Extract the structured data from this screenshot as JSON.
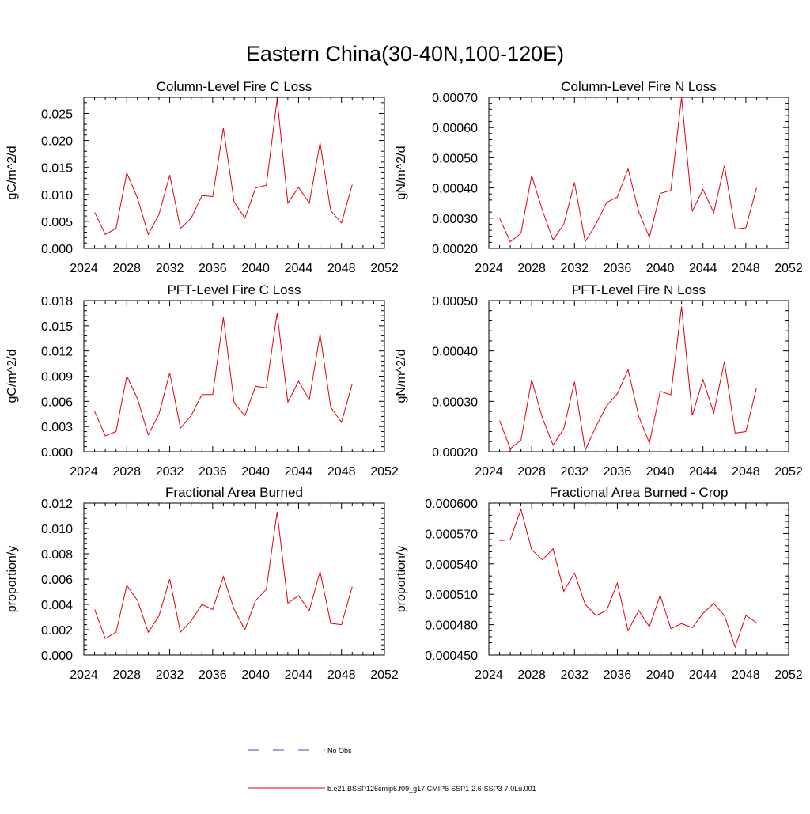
{
  "figure_title": "Eastern China(30-40N,100-120E)",
  "legend": {
    "entries": [
      {
        "label": "No Obs",
        "color": "#4a4aa8",
        "dash": true
      },
      {
        "label": "b.e21.BSSP126cmip6.f09_g17.CMIP6-SSP1-2.6-SSP3-7.0Lu.001",
        "color": "#e0000b",
        "dash": false
      }
    ]
  },
  "chart_data": [
    {
      "type": "line",
      "title": "Column-Level Fire C Loss",
      "ylabel": "gC/m^2/d",
      "xlim": [
        2024,
        2052
      ],
      "ylim": [
        0,
        0.028
      ],
      "xticks": [
        "2024",
        "2028",
        "2032",
        "2036",
        "2040",
        "2044",
        "2048",
        "2052"
      ],
      "yticks": [
        "0.000",
        "0.005",
        "0.010",
        "0.015",
        "0.020",
        "0.025"
      ],
      "ytick_values": [
        0,
        0.005,
        0.01,
        0.015,
        0.02,
        0.025
      ],
      "series": [
        {
          "color": "#e0000b",
          "x": [
            2025,
            2026,
            2027,
            2028,
            2029,
            2030,
            2031,
            2032,
            2033,
            2034,
            2035,
            2036,
            2037,
            2038,
            2039,
            2040,
            2041,
            2042,
            2043,
            2044,
            2045,
            2046,
            2047,
            2048,
            2049
          ],
          "values": [
            0.0067,
            0.0026,
            0.0037,
            0.014,
            0.0093,
            0.0026,
            0.0063,
            0.0136,
            0.0037,
            0.0056,
            0.0098,
            0.0096,
            0.0223,
            0.0086,
            0.0056,
            0.0112,
            0.0117,
            0.0276,
            0.0084,
            0.0113,
            0.0084,
            0.0196,
            0.007,
            0.0047,
            0.0118
          ]
        }
      ]
    },
    {
      "type": "line",
      "title": "Column-Level Fire N Loss",
      "ylabel": "gN/m^2/d",
      "xlim": [
        2024,
        2052
      ],
      "ylim": [
        0.0002,
        0.0007
      ],
      "xticks": [
        "2024",
        "2028",
        "2032",
        "2036",
        "2040",
        "2044",
        "2048",
        "2052"
      ],
      "yticks": [
        "0.00020",
        "0.00030",
        "0.00040",
        "0.00050",
        "0.00060",
        "0.00070"
      ],
      "ytick_values": [
        0.0002,
        0.0003,
        0.0004,
        0.0005,
        0.0006,
        0.0007
      ],
      "series": [
        {
          "color": "#e0000b",
          "x": [
            2025,
            2026,
            2027,
            2028,
            2029,
            2030,
            2031,
            2032,
            2033,
            2034,
            2035,
            2036,
            2037,
            2038,
            2039,
            2040,
            2041,
            2042,
            2043,
            2044,
            2045,
            2046,
            2047,
            2048,
            2049
          ],
          "values": [
            0.0003,
            0.000222,
            0.00025,
            0.000441,
            0.000326,
            0.000228,
            0.00028,
            0.000418,
            0.000222,
            0.00028,
            0.000352,
            0.00037,
            0.000463,
            0.000321,
            0.000237,
            0.000382,
            0.000392,
            0.0007,
            0.000323,
            0.000395,
            0.000318,
            0.000474,
            0.000264,
            0.000268,
            0.0004
          ]
        }
      ]
    },
    {
      "type": "line",
      "title": "PFT-Level Fire C Loss",
      "ylabel": "gC/m^2/d",
      "xlim": [
        2024,
        2052
      ],
      "ylim": [
        0,
        0.018
      ],
      "xticks": [
        "2024",
        "2028",
        "2032",
        "2036",
        "2040",
        "2044",
        "2048",
        "2052"
      ],
      "yticks": [
        "0.000",
        "0.003",
        "0.006",
        "0.009",
        "0.012",
        "0.015",
        "0.018"
      ],
      "ytick_values": [
        0,
        0.003,
        0.006,
        0.009,
        0.012,
        0.015,
        0.018
      ],
      "series": [
        {
          "color": "#e0000b",
          "x": [
            2025,
            2026,
            2027,
            2028,
            2029,
            2030,
            2031,
            2032,
            2033,
            2034,
            2035,
            2036,
            2037,
            2038,
            2039,
            2040,
            2041,
            2042,
            2043,
            2044,
            2045,
            2046,
            2047,
            2048,
            2049
          ],
          "values": [
            0.0048,
            0.0019,
            0.0024,
            0.009,
            0.0063,
            0.002,
            0.0045,
            0.0094,
            0.0028,
            0.0043,
            0.0068,
            0.0068,
            0.016,
            0.0058,
            0.0043,
            0.0078,
            0.0076,
            0.0165,
            0.0059,
            0.0084,
            0.0062,
            0.014,
            0.0053,
            0.0035,
            0.0081
          ]
        }
      ]
    },
    {
      "type": "line",
      "title": "PFT-Level Fire N Loss",
      "ylabel": "gN/m^2/d",
      "xlim": [
        2024,
        2052
      ],
      "ylim": [
        0.0002,
        0.0005
      ],
      "xticks": [
        "2024",
        "2028",
        "2032",
        "2036",
        "2040",
        "2044",
        "2048",
        "2052"
      ],
      "yticks": [
        "0.00020",
        "0.00030",
        "0.00040",
        "0.00050"
      ],
      "ytick_values": [
        0.0002,
        0.0003,
        0.0004,
        0.0005
      ],
      "series": [
        {
          "color": "#e0000b",
          "x": [
            2025,
            2026,
            2027,
            2028,
            2029,
            2030,
            2031,
            2032,
            2033,
            2034,
            2035,
            2036,
            2037,
            2038,
            2039,
            2040,
            2041,
            2042,
            2043,
            2044,
            2045,
            2046,
            2047,
            2048,
            2049
          ],
          "values": [
            0.000262,
            0.000206,
            0.000223,
            0.000343,
            0.000267,
            0.000213,
            0.000246,
            0.000339,
            0.000203,
            0.00025,
            0.000291,
            0.000315,
            0.000363,
            0.00027,
            0.000217,
            0.00032,
            0.000313,
            0.000488,
            0.000272,
            0.000343,
            0.000277,
            0.000379,
            0.000237,
            0.00024,
            0.000327
          ]
        }
      ]
    },
    {
      "type": "line",
      "title": "Fractional Area Burned",
      "ylabel": "proportion/y",
      "xlim": [
        2024,
        2052
      ],
      "ylim": [
        0,
        0.012
      ],
      "xticks": [
        "2024",
        "2028",
        "2032",
        "2036",
        "2040",
        "2044",
        "2048",
        "2052"
      ],
      "yticks": [
        "0.000",
        "0.002",
        "0.004",
        "0.006",
        "0.008",
        "0.010",
        "0.012"
      ],
      "ytick_values": [
        0,
        0.002,
        0.004,
        0.006,
        0.008,
        0.01,
        0.012
      ],
      "series": [
        {
          "color": "#e0000b",
          "x": [
            2025,
            2026,
            2027,
            2028,
            2029,
            2030,
            2031,
            2032,
            2033,
            2034,
            2035,
            2036,
            2037,
            2038,
            2039,
            2040,
            2041,
            2042,
            2043,
            2044,
            2045,
            2046,
            2047,
            2048,
            2049
          ],
          "values": [
            0.0036,
            0.0013,
            0.0018,
            0.0055,
            0.0043,
            0.0018,
            0.0031,
            0.006,
            0.0018,
            0.0027,
            0.004,
            0.0036,
            0.0062,
            0.0036,
            0.002,
            0.0043,
            0.0052,
            0.0113,
            0.0041,
            0.0047,
            0.0035,
            0.0066,
            0.0025,
            0.0024,
            0.0054
          ]
        }
      ]
    },
    {
      "type": "line",
      "title": "Fractional Area Burned - Crop",
      "ylabel": "proportion/y",
      "xlim": [
        2024,
        2052
      ],
      "ylim": [
        0.00045,
        0.0006
      ],
      "xticks": [
        "2024",
        "2028",
        "2032",
        "2036",
        "2040",
        "2044",
        "2048",
        "2052"
      ],
      "yticks": [
        "0.000450",
        "0.000480",
        "0.000510",
        "0.000540",
        "0.000570",
        "0.000600"
      ],
      "ytick_values": [
        0.00045,
        0.00048,
        0.00051,
        0.00054,
        0.00057,
        0.0006
      ],
      "series": [
        {
          "color": "#e0000b",
          "x": [
            2025,
            2026,
            2027,
            2028,
            2029,
            2030,
            2031,
            2032,
            2033,
            2034,
            2035,
            2036,
            2037,
            2038,
            2039,
            2040,
            2041,
            2042,
            2043,
            2044,
            2045,
            2046,
            2047,
            2048,
            2049
          ],
          "values": [
            0.000563,
            0.000564,
            0.000594,
            0.000554,
            0.000544,
            0.000555,
            0.000513,
            0.000531,
            0.0005,
            0.000489,
            0.000494,
            0.000521,
            0.000474,
            0.000494,
            0.000478,
            0.000509,
            0.000476,
            0.000481,
            0.000477,
            0.000491,
            0.000501,
            0.000489,
            0.000458,
            0.000489,
            0.000482
          ]
        }
      ]
    }
  ]
}
